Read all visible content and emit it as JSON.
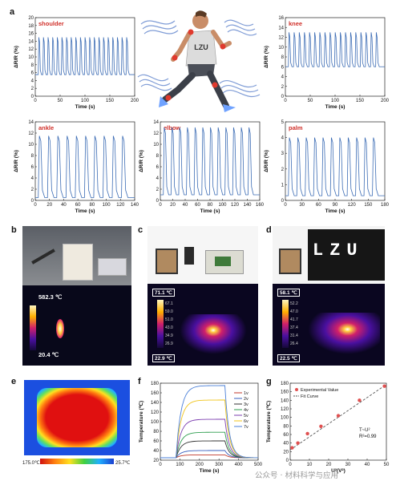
{
  "panel_letters": {
    "a": "a",
    "b": "b",
    "c": "c",
    "d": "d",
    "e": "e",
    "f": "f",
    "g": "g"
  },
  "chart_data": [
    {
      "id": "shoulder",
      "type": "line",
      "title": "shoulder",
      "xlabel": "Time (s)",
      "ylabel": "ΔR/R (%)",
      "xlim": [
        0,
        200
      ],
      "ylim": [
        0,
        20
      ],
      "xticks": [
        0,
        50,
        100,
        150,
        200
      ],
      "yticks": [
        0,
        2,
        4,
        6,
        8,
        10,
        12,
        14,
        16,
        18,
        20
      ],
      "baseline": 5.5,
      "peak": 15,
      "cycles": 20
    },
    {
      "id": "knee",
      "type": "line",
      "title": "knee",
      "xlabel": "Time (s)",
      "ylabel": "ΔR/R (%)",
      "xlim": [
        0,
        200
      ],
      "ylim": [
        0,
        16
      ],
      "xticks": [
        0,
        50,
        100,
        150,
        200
      ],
      "yticks": [
        0,
        2,
        4,
        6,
        8,
        10,
        12,
        14,
        16
      ],
      "baseline": 6,
      "peak": 13,
      "cycles": 18
    },
    {
      "id": "ankle",
      "type": "line",
      "title": "ankle",
      "xlabel": "Time (s)",
      "ylabel": "ΔR/R (%)",
      "xlim": [
        0,
        140
      ],
      "ylim": [
        0,
        14
      ],
      "xticks": [
        0,
        20,
        40,
        60,
        80,
        100,
        120,
        140
      ],
      "yticks": [
        0,
        2,
        4,
        6,
        8,
        10,
        12,
        14
      ],
      "baseline": 0.5,
      "peak": 11.5,
      "cycles": 10
    },
    {
      "id": "elbow",
      "type": "line",
      "title": "elbow",
      "xlabel": "Time (s)",
      "ylabel": "ΔR/R (%)",
      "xlim": [
        0,
        160
      ],
      "ylim": [
        0,
        14
      ],
      "xticks": [
        0,
        20,
        40,
        60,
        80,
        100,
        120,
        140,
        160
      ],
      "yticks": [
        0,
        2,
        4,
        6,
        8,
        10,
        12,
        14
      ],
      "baseline": 1,
      "peak": 13,
      "cycles": 12
    },
    {
      "id": "palm",
      "type": "line",
      "title": "palm",
      "xlabel": "Time (s)",
      "ylabel": "ΔR/R (%)",
      "xlim": [
        0,
        180
      ],
      "ylim": [
        0,
        5
      ],
      "xticks": [
        0,
        30,
        60,
        90,
        120,
        150,
        180
      ],
      "yticks": [
        0,
        1,
        2,
        3,
        4,
        5
      ],
      "baseline": 0.3,
      "peak": 4,
      "cycles": 11
    },
    {
      "id": "f",
      "type": "line",
      "xlabel": "Time (s)",
      "ylabel": "Temperature (℃)",
      "xlim": [
        0,
        500
      ],
      "ylim": [
        20,
        180
      ],
      "xticks": [
        0,
        100,
        200,
        300,
        400,
        500
      ],
      "yticks": [
        20,
        40,
        60,
        80,
        100,
        120,
        140,
        160,
        180
      ],
      "series": [
        {
          "name": "1v",
          "color": "#c0392b",
          "plateau": 31
        },
        {
          "name": "2v",
          "color": "#3a5fbf",
          "plateau": 40
        },
        {
          "name": "3v",
          "color": "#333333",
          "plateau": 60
        },
        {
          "name": "4v",
          "color": "#2e9e4f",
          "plateau": 78
        },
        {
          "name": "5v",
          "color": "#7d3fb0",
          "plateau": 105
        },
        {
          "name": "6v",
          "color": "#f0c419",
          "plateau": 145
        },
        {
          "name": "7v",
          "color": "#4a7fd8",
          "plateau": 175
        }
      ]
    },
    {
      "id": "g",
      "type": "scatter",
      "xlabel": "U²(V²)",
      "ylabel": "Temperature (℃)",
      "xlim": [
        0,
        50
      ],
      "ylim": [
        0,
        180
      ],
      "xticks": [
        0,
        10,
        20,
        30,
        40,
        50
      ],
      "yticks": [
        0,
        20,
        40,
        60,
        80,
        100,
        120,
        140,
        160,
        180
      ],
      "legend": [
        "Experimental Value",
        "Fit Curve"
      ],
      "annotation_eq": "T~U²",
      "annotation_r2": "R²=0.99",
      "points": [
        [
          1,
          29
        ],
        [
          4,
          40
        ],
        [
          9,
          62
        ],
        [
          16,
          79
        ],
        [
          25,
          104
        ],
        [
          36,
          140
        ],
        [
          49,
          173
        ]
      ],
      "fit": [
        [
          0,
          24
        ],
        [
          50,
          177
        ]
      ]
    }
  ],
  "panel_a": {
    "tshirt_text": "LZU"
  },
  "panel_b": {
    "temp_max": "582.3 ℃",
    "temp_min": "20.4 ℃"
  },
  "panel_c": {
    "temp_max": "71.1 ℃",
    "temp_min": "22.9 ℃",
    "scale": [
      "67.1",
      "59.0",
      "51.0",
      "43.0",
      "34.9",
      "26.9"
    ]
  },
  "panel_d": {
    "temp_max": "58.1 ℃",
    "temp_min": "22.5 ℃",
    "sign_text": "LZU",
    "scale": [
      "52.2",
      "47.0",
      "41.7",
      "37.4",
      "31.4",
      "26.4"
    ]
  },
  "panel_e": {
    "temp_max": "175.0℃",
    "temp_min": "25.7℃"
  },
  "watermark": "公众号 · 材料科学与应用",
  "colors": {
    "line": "#3d6db5",
    "chart_title": "#d0302a",
    "thermal_hot": "#ffffff"
  }
}
